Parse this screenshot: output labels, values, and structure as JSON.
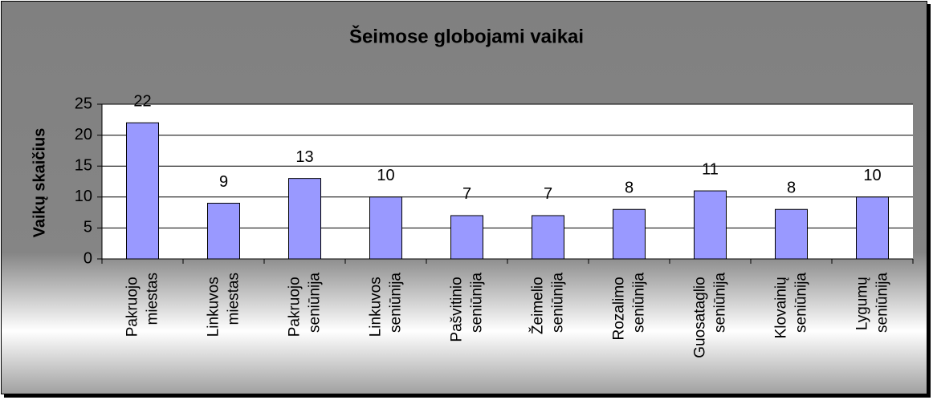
{
  "chart_data": {
    "type": "bar",
    "title": "Šeimose globojami vaikai",
    "y_label": "Vaikų skaičius",
    "categories": [
      "Pakruojo miestas",
      "Linkuvos miestas",
      "Pakruojo seniūnija",
      "Linkuvos seniūnija",
      "Pašvitinio seniūnija",
      "Žeimelio seniūnija",
      "Rozalimo seniūnija",
      "Guosataglio seniūnija",
      "Klovainių seniūnija",
      "Lygumų seniūnija"
    ],
    "values": [
      22,
      9,
      13,
      10,
      7,
      7,
      8,
      11,
      8,
      10
    ],
    "color": "#9999ff",
    "ylim": [
      0,
      25
    ],
    "yticks": [
      0,
      5,
      10,
      15,
      20,
      25
    ],
    "grid": true
  }
}
